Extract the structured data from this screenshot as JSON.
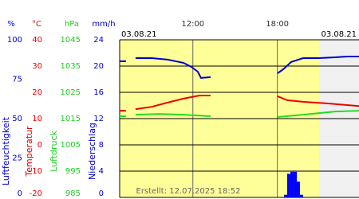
{
  "chart_data": {
    "type": "line",
    "date_left": "03.08.21",
    "date_right": "03.08.21",
    "footer": "Erstellt: 12.07.2025 18:52",
    "xlim": [
      6.8,
      23.8
    ],
    "xticks": [
      {
        "value": 12,
        "label": "12:00"
      },
      {
        "value": 18,
        "label": "18:00"
      }
    ],
    "axes": [
      {
        "unit": "%",
        "title": "Luftfeuchtigkeit",
        "color": "#0000cc",
        "ylim": [
          0,
          100
        ],
        "yticks": [
          0,
          25,
          50,
          75,
          100
        ]
      },
      {
        "unit": "°C",
        "title": "Temperatur",
        "color": "#ee0000",
        "ylim": [
          -20,
          40
        ],
        "yticks": [
          -20,
          -10,
          0,
          10,
          20,
          30,
          40
        ]
      },
      {
        "unit": "hPa",
        "title": "Luftdruck",
        "color": "#22cc22",
        "ylim": [
          985,
          1045
        ],
        "yticks": [
          985,
          995,
          1005,
          1015,
          1025,
          1035,
          1045
        ]
      },
      {
        "unit": "mm/h",
        "title": "Niederschlag",
        "color": "#0000cc",
        "ylim": [
          0,
          24
        ],
        "yticks": [
          0,
          4,
          8,
          12,
          16,
          20,
          24
        ]
      }
    ],
    "series": [
      {
        "type": "line",
        "axis": 0,
        "color": "#0000cc",
        "x": [
          6.8,
          7.25,
          7.6,
          7.93,
          9.07,
          10.2,
          11.33,
          11.9,
          12.35,
          12.58,
          13.26,
          14,
          18.02,
          18.42,
          18.98,
          19.83,
          20.97,
          22.1,
          22.95,
          23.8
        ],
        "values": [
          86.4,
          86.4,
          null,
          88.4,
          88.4,
          87.4,
          85.4,
          82.8,
          79.8,
          75.8,
          76.3,
          null,
          78.8,
          81.3,
          85.9,
          88.4,
          88.4,
          88.9,
          89.4,
          89.4
        ]
      },
      {
        "type": "line",
        "axis": 1,
        "color": "#ee0000",
        "x": [
          6.8,
          7.25,
          7.6,
          7.93,
          9.07,
          10.2,
          11.33,
          12.47,
          13.26,
          14,
          18.02,
          18.7,
          19.83,
          21.53,
          23.8
        ],
        "values": [
          13.0,
          13.0,
          null,
          13.6,
          14.5,
          16.1,
          17.6,
          18.8,
          18.8,
          null,
          18.5,
          17.0,
          16.4,
          15.8,
          14.8
        ]
      },
      {
        "type": "line",
        "axis": 2,
        "color": "#22dd22",
        "x": [
          6.8,
          7.25,
          7.6,
          7.93,
          9.63,
          11.33,
          13.26,
          14,
          18.02,
          19.83,
          22.1,
          23.8
        ],
        "values": [
          1015.9,
          1015.9,
          null,
          1016.5,
          1016.8,
          1016.5,
          1015.9,
          null,
          1015.6,
          1016.5,
          1017.7,
          1018.0
        ]
      },
      {
        "type": "bar",
        "axis": 3,
        "color": "#0000ff",
        "x": [
          18.59,
          18.81,
          19.04,
          19.27,
          19.49,
          19.72
        ],
        "values": [
          0.4,
          3.6,
          3.9,
          3.9,
          2.4,
          0.4
        ]
      }
    ]
  }
}
